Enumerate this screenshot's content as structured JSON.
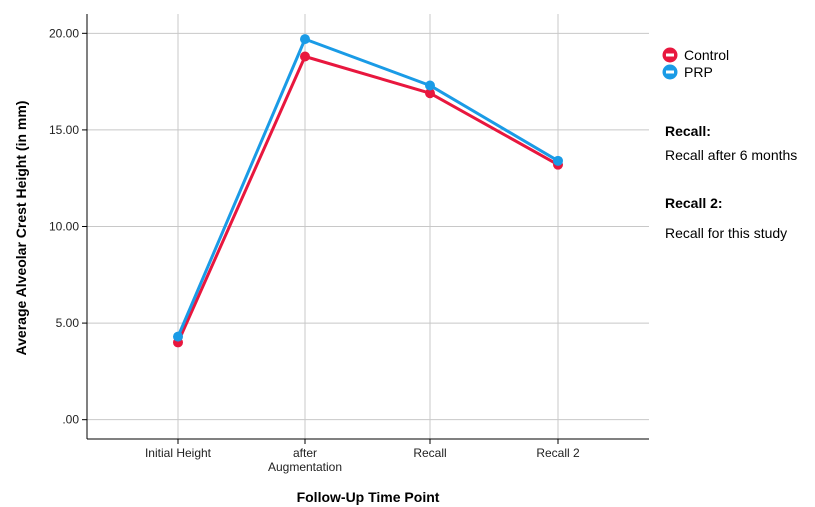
{
  "chart_data": {
    "type": "line",
    "title": "",
    "xlabel": "Follow-Up Time Point",
    "ylabel": "Average Alveolar Crest Height (in mm)",
    "categories": [
      [
        "Initial Height"
      ],
      [
        "after",
        "Augmentation"
      ],
      [
        "Recall"
      ],
      [
        "Recall 2"
      ]
    ],
    "ylim": [
      -1,
      21
    ],
    "yticks": [
      {
        "value": 0,
        "label": ".00"
      },
      {
        "value": 5,
        "label": "5.00"
      },
      {
        "value": 10,
        "label": "10.00"
      },
      {
        "value": 15,
        "label": "15.00"
      },
      {
        "value": 20,
        "label": "20.00"
      }
    ],
    "grid": true,
    "legend": "top-right",
    "series": [
      {
        "name": "Control",
        "color": "#e8173e",
        "values": [
          4.0,
          18.8,
          16.9,
          13.2
        ]
      },
      {
        "name": "PRP",
        "color": "#1a9be6",
        "values": [
          4.3,
          19.7,
          17.3,
          13.4
        ]
      }
    ],
    "annotations": [
      {
        "title": "Recall:",
        "text": "Recall after 6 months"
      },
      {
        "title": "Recall 2:",
        "text": "Recall for this study"
      }
    ]
  }
}
